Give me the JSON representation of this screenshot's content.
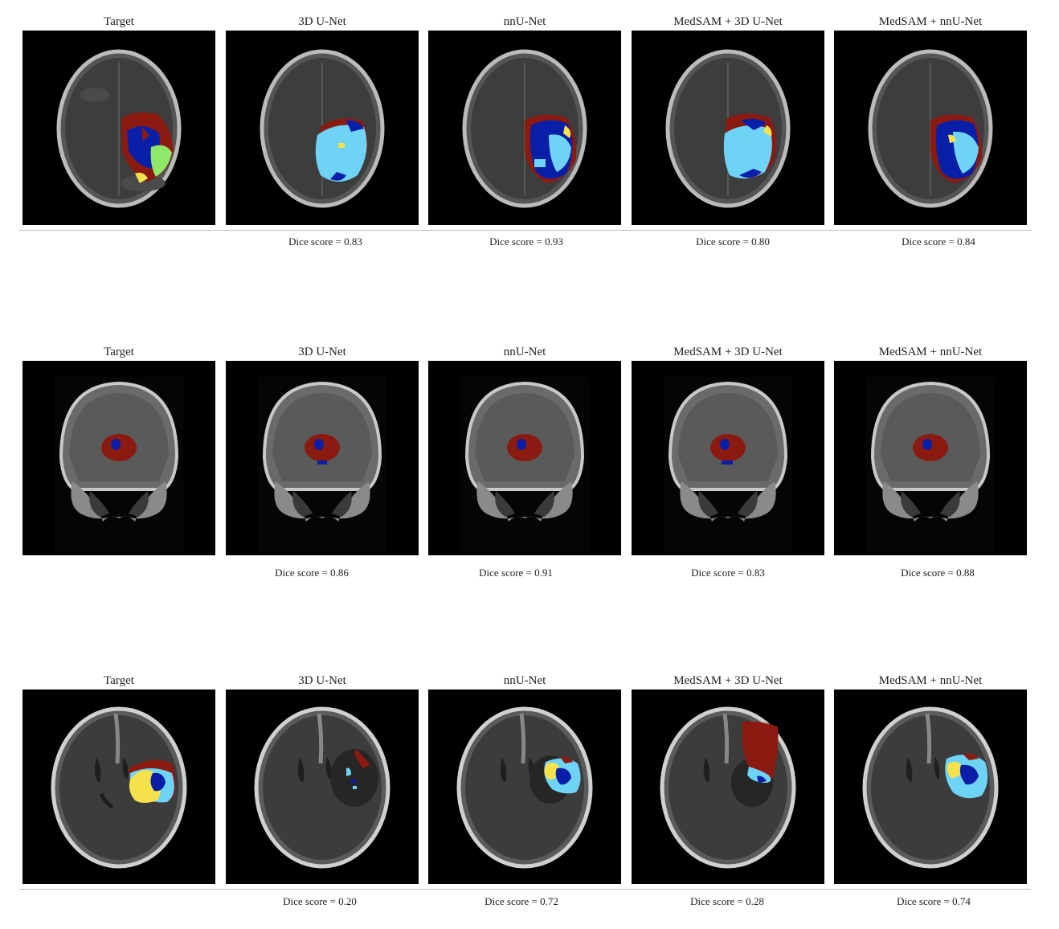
{
  "rows": [
    {
      "panels": [
        {
          "title": "Target"
        },
        {
          "title": "3D U-Net",
          "dice": "Dice score = 0.83"
        },
        {
          "title": "nnU-Net",
          "dice": "Dice score = 0.93"
        },
        {
          "title": "MedSAM + 3D U-Net",
          "dice": "Dice score = 0.80"
        },
        {
          "title": "MedSAM + nnU-Net",
          "dice": "Dice score = 0.84"
        }
      ]
    },
    {
      "panels": [
        {
          "title": "Target"
        },
        {
          "title": "3D U-Net",
          "dice": "Dice score = 0.86"
        },
        {
          "title": "nnU-Net",
          "dice": "Dice score = 0.91"
        },
        {
          "title": "MedSAM + 3D U-Net",
          "dice": "Dice score = 0.83"
        },
        {
          "title": "MedSAM + nnU-Net",
          "dice": "Dice score = 0.88"
        }
      ]
    },
    {
      "panels": [
        {
          "title": "Target"
        },
        {
          "title": "3D U-Net",
          "dice": "Dice score = 0.20"
        },
        {
          "title": "nnU-Net",
          "dice": "Dice score = 0.72"
        },
        {
          "title": "MedSAM + 3D U-Net",
          "dice": "Dice score = 0.28"
        },
        {
          "title": "MedSAM + nnU-Net",
          "dice": "Dice score = 0.74"
        }
      ]
    }
  ],
  "colors": {
    "background": "#000000",
    "necrotic": "#8b1a10",
    "enhancing": "#0a1fa8",
    "edema": "#6fd3f5",
    "yellow": "#f5e24a",
    "green": "#8ee86a"
  }
}
